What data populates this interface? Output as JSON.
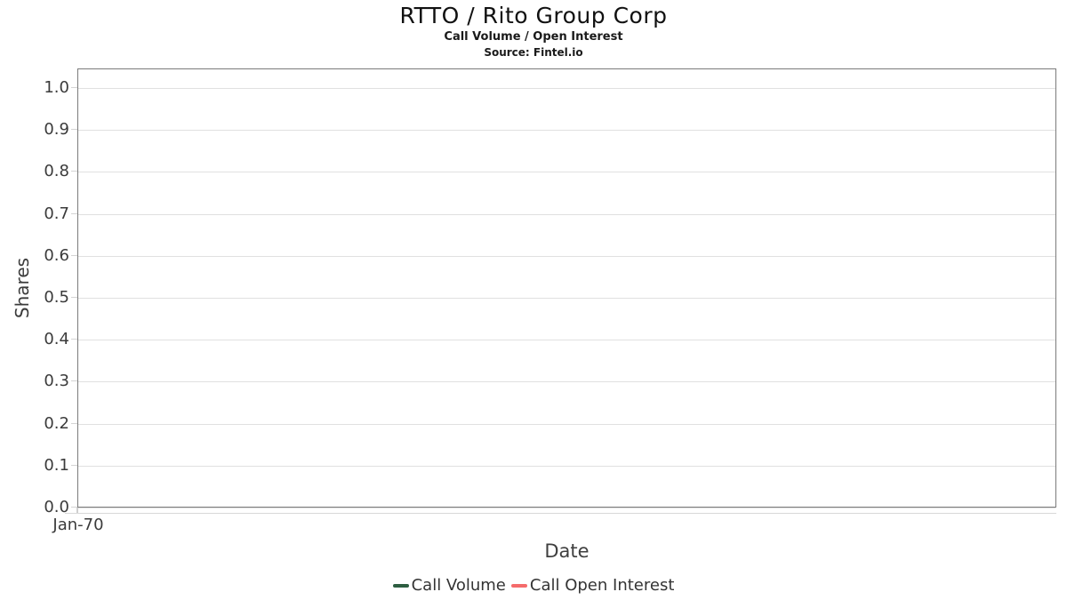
{
  "chart_data": {
    "type": "line",
    "title": "RTTO / Rito Group Corp",
    "subtitle": "Call Volume / Open Interest",
    "source": "Source: Fintel.io",
    "xlabel": "Date",
    "ylabel": "Shares",
    "ylim": [
      0.0,
      1.047
    ],
    "y_ticks": [
      {
        "value": 0.0,
        "label": "0.0"
      },
      {
        "value": 0.1,
        "label": "0.1"
      },
      {
        "value": 0.2,
        "label": "0.2"
      },
      {
        "value": 0.3,
        "label": "0.3"
      },
      {
        "value": 0.4,
        "label": "0.4"
      },
      {
        "value": 0.5,
        "label": "0.5"
      },
      {
        "value": 0.6,
        "label": "0.6"
      },
      {
        "value": 0.7,
        "label": "0.7"
      },
      {
        "value": 0.8,
        "label": "0.8"
      },
      {
        "value": 0.9,
        "label": "0.9"
      },
      {
        "value": 1.0,
        "label": "1.0"
      }
    ],
    "x_ticks": [
      "Jan-70"
    ],
    "grid": "horizontal",
    "legend_position": "bottom",
    "series": [
      {
        "name": "Call Volume",
        "color": "#2d5e41",
        "x": [],
        "values": []
      },
      {
        "name": "Call Open Interest",
        "color": "#f56b6b",
        "x": [],
        "values": []
      }
    ]
  },
  "colors": {
    "call_volume": "#2d5e41",
    "call_open_interest": "#f56b6b",
    "plot_border": "#7b7b7b",
    "gridline": "#e0e0e0",
    "text": "#3b3b3b"
  }
}
